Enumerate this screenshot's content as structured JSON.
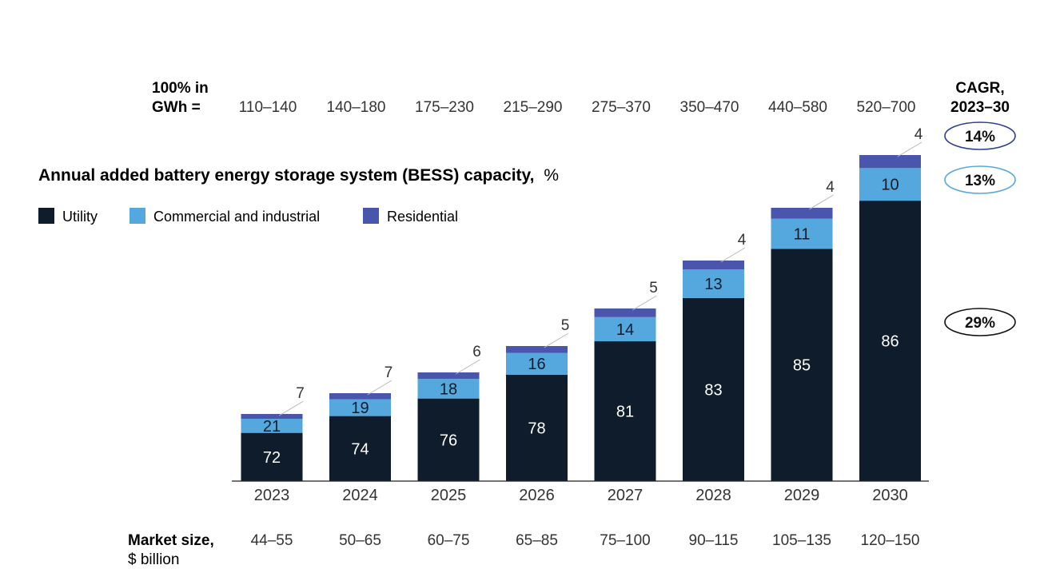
{
  "chart_data": {
    "type": "bar",
    "stacked": true,
    "title": "Annual added battery energy storage system (BESS) capacity,",
    "title_unit": "%",
    "categories": [
      "2023",
      "2024",
      "2025",
      "2026",
      "2027",
      "2028",
      "2029",
      "2030"
    ],
    "series": [
      {
        "name": "Utility",
        "color": "#0e1c2b",
        "values": [
          72,
          74,
          76,
          78,
          81,
          83,
          85,
          86
        ]
      },
      {
        "name": "Commercial and industrial",
        "color": "#55a8dd",
        "values": [
          21,
          19,
          18,
          16,
          14,
          13,
          11,
          10
        ]
      },
      {
        "name": "Residential",
        "color": "#4a55ad",
        "values": [
          7,
          7,
          6,
          5,
          5,
          4,
          4,
          4
        ]
      }
    ],
    "totals_label": {
      "line1": "100% in",
      "line2": "GWh ="
    },
    "totals_gwh": [
      "110–140",
      "140–180",
      "175–230",
      "215–290",
      "275–370",
      "350–470",
      "440–580",
      "520–700"
    ],
    "market_size_label": {
      "line1": "Market size,",
      "line2": "$ billion"
    },
    "market_size": [
      "44–55",
      "50–65",
      "60–75",
      "65–85",
      "75–100",
      "90–115",
      "105–135",
      "120–150"
    ],
    "cagr_header": {
      "line1": "CAGR,",
      "line2": "2023–30"
    },
    "cagr": [
      {
        "series": "Residential",
        "value": "14%",
        "border": "#2f3f8f"
      },
      {
        "series": "Commercial and industrial",
        "value": "13%",
        "border": "#55a8dd"
      },
      {
        "series": "Utility",
        "value": "29%",
        "border": "#111111"
      }
    ]
  }
}
